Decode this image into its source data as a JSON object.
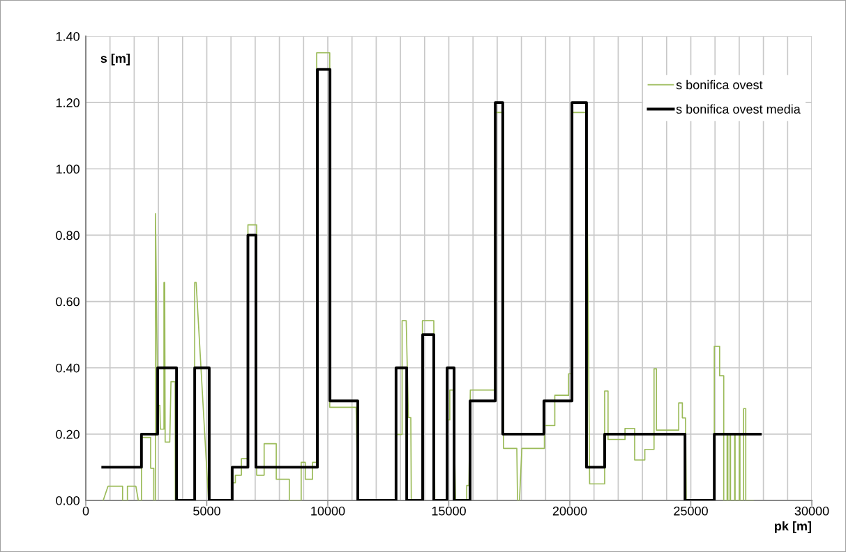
{
  "chart_data": {
    "type": "line",
    "xlabel": "pk [m]",
    "ylabel": "s [m]",
    "xlim": [
      0,
      30000
    ],
    "ylim": [
      0,
      1.4
    ],
    "xticks": [
      0,
      {
        "value": 1000,
        "label": null
      },
      {
        "value": 2000,
        "label": null
      },
      {
        "value": 3000,
        "label": null
      },
      {
        "value": 4000,
        "label": null
      },
      5000,
      {
        "value": 6000,
        "label": null
      },
      {
        "value": 7000,
        "label": null
      },
      {
        "value": 8000,
        "label": null
      },
      {
        "value": 9000,
        "label": null
      },
      10000,
      {
        "value": 11000,
        "label": null
      },
      {
        "value": 12000,
        "label": null
      },
      {
        "value": 13000,
        "label": null
      },
      {
        "value": 14000,
        "label": null
      },
      15000,
      {
        "value": 16000,
        "label": null
      },
      {
        "value": 17000,
        "label": null
      },
      {
        "value": 18000,
        "label": null
      },
      {
        "value": 19000,
        "label": null
      },
      20000,
      {
        "value": 21000,
        "label": null
      },
      {
        "value": 22000,
        "label": null
      },
      {
        "value": 23000,
        "label": null
      },
      {
        "value": 24000,
        "label": null
      },
      25000,
      {
        "value": 26000,
        "label": null
      },
      {
        "value": 27000,
        "label": null
      },
      {
        "value": 28000,
        "label": null
      },
      {
        "value": 29000,
        "label": null
      },
      30000
    ],
    "yticks": [
      {
        "value": 0,
        "label": "0.00"
      },
      {
        "value": 0.2,
        "label": "0.20"
      },
      {
        "value": 0.4,
        "label": "0.40"
      },
      {
        "value": 0.6,
        "label": "0.60"
      },
      {
        "value": 0.8,
        "label": "0.80"
      },
      {
        "value": 1.0,
        "label": "1.00"
      },
      {
        "value": 1.2,
        "label": "1.20"
      },
      {
        "value": 1.4,
        "label": "1.40"
      }
    ],
    "grid": true,
    "legend": "top right",
    "series": [
      {
        "name": "s bonifica ovest",
        "color": "#9bbb59",
        "x": [
          720,
          920,
          1520,
          1520,
          1720,
          1720,
          2070,
          2170,
          2300,
          2300,
          2680,
          2680,
          2810,
          2810,
          2880,
          2880,
          2970,
          2970,
          3060,
          3080,
          3180,
          3230,
          3230,
          3260,
          3280,
          3470,
          3520,
          3690,
          3700,
          4500,
          4500,
          4560,
          5070,
          6050,
          6050,
          6110,
          6180,
          6180,
          6350,
          6430,
          6430,
          6640,
          6700,
          6700,
          7040,
          7060,
          7060,
          7370,
          7370,
          7870,
          7870,
          8410,
          8410,
          8900,
          8900,
          9070,
          9070,
          9370,
          9370,
          9500,
          9540,
          9540,
          10080,
          10080,
          11170,
          11240,
          12790,
          12810,
          12810,
          13070,
          13070,
          13240,
          13330,
          13330,
          13430,
          13450,
          13910,
          13910,
          14380,
          14420,
          14950,
          14960,
          14960,
          15040,
          15040,
          15190,
          15280,
          15740,
          15740,
          15830,
          15890,
          15890,
          16880,
          16900,
          16900,
          17260,
          17260,
          17810,
          17840,
          17920,
          18020,
          18020,
          18950,
          18950,
          19380,
          19380,
          19950,
          19950,
          20020,
          20080,
          20080,
          20690,
          20820,
          20820,
          21440,
          21440,
          21580,
          21580,
          22280,
          22280,
          22680,
          22680,
          23100,
          23100,
          23480,
          23480,
          23580,
          23580,
          24500,
          24500,
          24650,
          24650,
          24780,
          24810,
          25970,
          25970,
          26190,
          26190,
          26360,
          26360,
          26500,
          26500,
          26530,
          26530,
          26620,
          26620,
          26640,
          26640,
          26810,
          26810,
          26830,
          26830,
          27000,
          27000,
          27030,
          27030,
          27180,
          27180,
          27270,
          27270,
          27580
        ],
        "values": [
          0,
          0.043,
          0.043,
          0,
          0,
          0.043,
          0.043,
          0,
          0,
          0.19,
          0.19,
          0.097,
          0.097,
          0,
          0,
          0.865,
          0.287,
          0.287,
          0.287,
          0.215,
          0.215,
          0.215,
          0.657,
          0.657,
          0.176,
          0.176,
          0.358,
          0.358,
          0,
          0,
          0.657,
          0.657,
          0,
          0,
          0.053,
          0.053,
          0.053,
          0.076,
          0.076,
          0.076,
          0.126,
          0.126,
          0.126,
          0.831,
          0.831,
          0.831,
          0.076,
          0.076,
          0.171,
          0.171,
          0.064,
          0.064,
          0,
          0,
          0.115,
          0.115,
          0.064,
          0.064,
          0.115,
          0.115,
          0.115,
          1.35,
          1.35,
          0.281,
          0.281,
          0,
          0,
          0,
          0.199,
          0.199,
          0.542,
          0.542,
          0.25,
          0.25,
          0.25,
          0,
          0,
          0.542,
          0.542,
          0,
          0,
          0,
          0.243,
          0.243,
          0.333,
          0.333,
          0,
          0,
          0.045,
          0.045,
          0.333,
          0.333,
          0.333,
          0.333,
          1.17,
          1.17,
          0.157,
          0.157,
          0,
          0,
          0.157,
          0.157,
          0.157,
          0.226,
          0.226,
          0.317,
          0.317,
          0.382,
          0.382,
          0.382,
          1.17,
          1.17,
          0.05,
          0.05,
          0.05,
          0.33,
          0.33,
          0.184,
          0.184,
          0.217,
          0.217,
          0.122,
          0.122,
          0.154,
          0.154,
          0.397,
          0.397,
          0.212,
          0.212,
          0.294,
          0.294,
          0.249,
          0.249,
          0,
          0,
          0.465,
          0.465,
          0.376,
          0.376,
          0,
          0,
          0.2,
          0.2,
          0,
          0,
          0.2,
          0.2,
          0,
          0,
          0.2,
          0.2,
          0,
          0,
          0.2,
          0.2,
          0,
          0,
          0.277,
          0.277,
          0,
          0
        ]
      },
      {
        "name": "s bonifica ovest media",
        "color": "#000000",
        "type": "step",
        "x": [
          700,
          2300,
          2970,
          3750,
          4500,
          5100,
          6050,
          6700,
          7030,
          9570,
          10090,
          11240,
          12820,
          13260,
          13920,
          14380,
          14930,
          15220,
          15880,
          16920,
          17230,
          18930,
          20090,
          20690,
          21440,
          24760,
          25970,
          27870
        ],
        "values": [
          0.1,
          0.2,
          0.4,
          0,
          0.4,
          0,
          0.1,
          0.8,
          0.1,
          1.3,
          0.3,
          0,
          0.4,
          0,
          0.5,
          0,
          0.4,
          0,
          0.3,
          1.2,
          0.2,
          0.3,
          1.2,
          0.1,
          0.2,
          0,
          0.2,
          0.2
        ]
      }
    ]
  }
}
